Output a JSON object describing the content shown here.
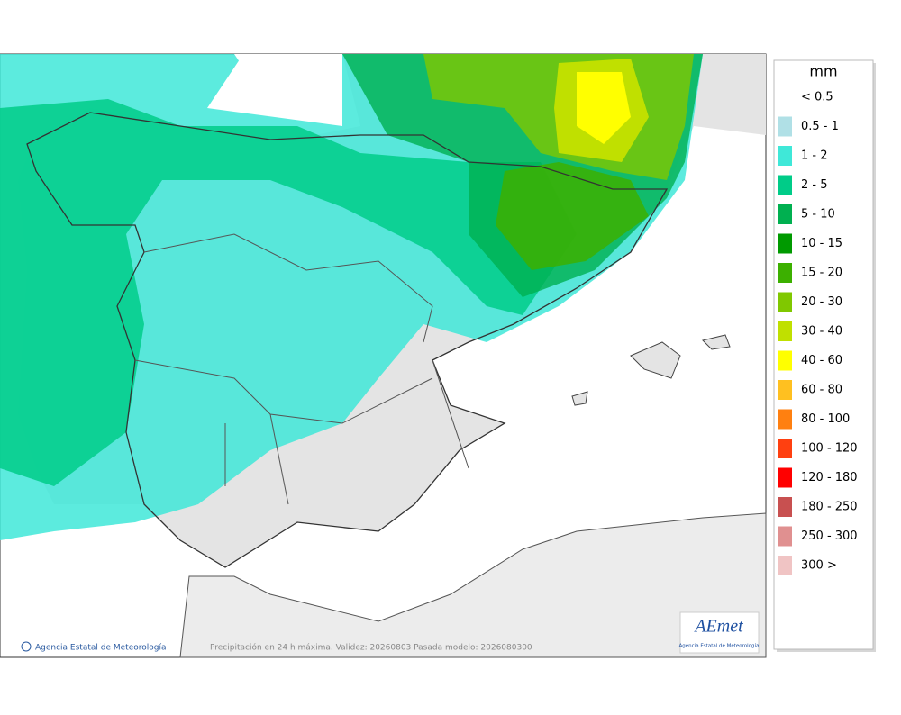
{
  "legend": {
    "title": "mm",
    "items": [
      {
        "label": "< 0.5"
      },
      {
        "label": "0.5 - 1",
        "color": "#b0e0e6"
      },
      {
        "label": "1 - 2",
        "color": "#3fe8d8"
      },
      {
        "label": "2 - 5",
        "color": "#00cc88"
      },
      {
        "label": "5 - 10",
        "color": "#00b050"
      },
      {
        "label": "10 - 15",
        "color": "#009a00"
      },
      {
        "label": "15 - 20",
        "color": "#3cb000"
      },
      {
        "label": "20 - 30",
        "color": "#80c800"
      },
      {
        "label": "30 - 40",
        "color": "#c0e000"
      },
      {
        "label": "40 - 60",
        "color": "#ffff00"
      },
      {
        "label": "60 - 80",
        "color": "#ffc020"
      },
      {
        "label": "80 - 100",
        "color": "#ff8010"
      },
      {
        "label": "100 - 120",
        "color": "#ff4010"
      },
      {
        "label": "120 - 180",
        "color": "#ff0000"
      },
      {
        "label": "180 - 250",
        "color": "#c85050"
      },
      {
        "label": "250 - 300",
        "color": "#e09090"
      },
      {
        "label": "300 >",
        "color": "#f0c4c4"
      }
    ]
  },
  "credit": "Agencia Estatal de Meteorología",
  "caption": "Precipitación en 24 h máxima. Validez: 20260803 Pasada modelo: 2026080300",
  "logo": {
    "text": "AEmet",
    "subtitle": "Agencia Estatal de Meteorología"
  }
}
